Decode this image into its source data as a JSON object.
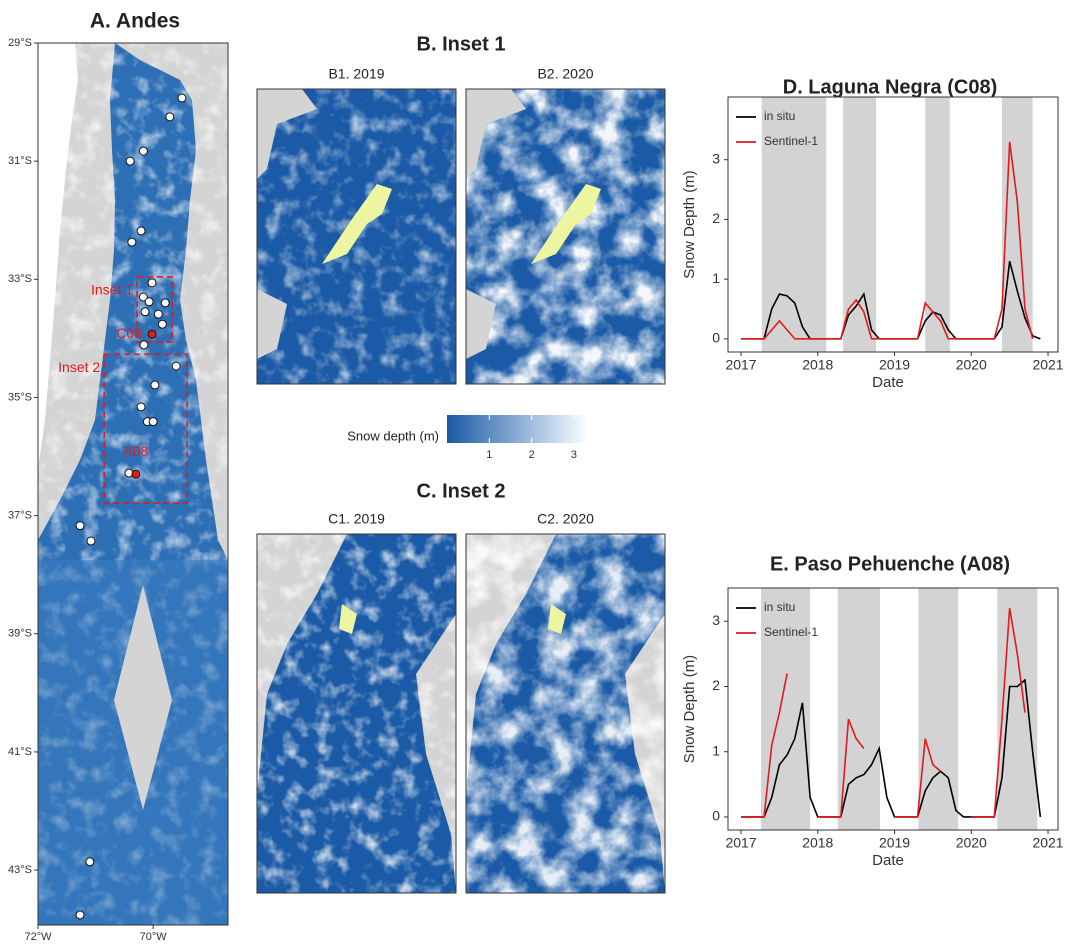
{
  "chart_data": [
    {
      "type": "map",
      "title": "A. Andes",
      "xlim": [
        -72,
        -68.7
      ],
      "ylim": [
        -43.93,
        -29
      ],
      "xticks": [
        {
          "value": -72,
          "label": "72°W"
        },
        {
          "value": -70,
          "label": "70°W"
        }
      ],
      "yticks": [
        {
          "value": -29,
          "label": "29°S"
        },
        {
          "value": -31,
          "label": "31°S"
        },
        {
          "value": -33,
          "label": "33°S"
        },
        {
          "value": -35,
          "label": "35°S"
        },
        {
          "value": -37,
          "label": "37°S"
        },
        {
          "value": -39,
          "label": "39°S"
        },
        {
          "value": -41,
          "label": "41°S"
        },
        {
          "value": -43,
          "label": "43°S"
        }
      ],
      "stations": {
        "color": "#ffffff",
        "lon": [
          -69.5,
          -69.71,
          -70.17,
          -70.4,
          -70.21,
          -70.37,
          -70.02,
          -70.17,
          -70.07,
          -70.14,
          -69.84,
          -69.79,
          -69.91,
          -70.16,
          -69.6,
          -69.97,
          -70.21,
          -70.1,
          -70.0,
          -70.42,
          -71.27,
          -71.08,
          -71.1,
          -71.27
        ],
        "lat": [
          -29.93,
          -30.25,
          -30.83,
          -31.0,
          -32.18,
          -32.37,
          -33.06,
          -33.3,
          -33.38,
          -33.55,
          -33.76,
          -33.4,
          -33.59,
          -34.11,
          -34.47,
          -34.79,
          -35.16,
          -35.41,
          -35.41,
          -36.28,
          -37.17,
          -37.43,
          -42.86,
          -43.76
        ]
      },
      "highlights": [
        {
          "label": "C08",
          "lon": -70.02,
          "lat": -33.93,
          "color": "#e31a1c"
        },
        {
          "label": "A08",
          "lon": -70.3,
          "lat": -36.3,
          "color": "#e31a1c"
        }
      ],
      "insets": [
        {
          "label": "Inset 1",
          "lon": [
            -70.28,
            -69.67
          ],
          "lat": [
            -32.96,
            -34.06
          ],
          "color": "#e31a1c"
        },
        {
          "label": "Inset 2",
          "lon": [
            -70.85,
            -69.41
          ],
          "lat": [
            -34.27,
            -36.79
          ],
          "color": "#e31a1c"
        }
      ]
    },
    {
      "type": "raster",
      "panels": [
        {
          "title": "B. Inset 1",
          "labels": [
            "B1. 2019",
            "B2. 2020"
          ]
        },
        {
          "title": "C. Inset 2",
          "labels": [
            "C1. 2019",
            "C2. 2020"
          ]
        }
      ],
      "colorbar": {
        "label": "Snow depth (m)",
        "lim": [
          0,
          3.26
        ],
        "ticks": [
          1,
          2,
          3
        ],
        "colormap": [
          "#1a5aa6",
          "#f7fbff"
        ]
      }
    },
    {
      "type": "line",
      "title": "D. Laguna Negra (C08)",
      "x_label": "Date",
      "y_label": "Snow Depth (m)",
      "xlim": [
        2016.83,
        2021.13
      ],
      "ylim": [
        -0.22,
        4.05
      ],
      "xticks": [
        2017,
        2018,
        2019,
        2020,
        2021
      ],
      "yticks": [
        0,
        1,
        2,
        3
      ],
      "shading": {
        "color": "#d3d3d3",
        "spans": [
          [
            2017.27,
            2018.11
          ],
          [
            2018.33,
            2018.76
          ],
          [
            2019.4,
            2019.72
          ],
          [
            2020.4,
            2020.8
          ]
        ]
      },
      "legend": "top-left",
      "x": [
        2017.0,
        2017.1,
        2017.2,
        2017.3,
        2017.4,
        2017.5,
        2017.6,
        2017.7,
        2017.8,
        2017.9,
        2018.0,
        2018.1,
        2018.2,
        2018.3,
        2018.4,
        2018.5,
        2018.6,
        2018.7,
        2018.8,
        2018.9,
        2019.0,
        2019.1,
        2019.2,
        2019.3,
        2019.4,
        2019.5,
        2019.6,
        2019.7,
        2019.8,
        2019.9,
        2020.0,
        2020.1,
        2020.2,
        2020.3,
        2020.4,
        2020.5,
        2020.6,
        2020.7,
        2020.8,
        2020.9
      ],
      "series": [
        {
          "name": "in situ",
          "color": "#000000",
          "values": [
            0,
            0,
            0,
            0,
            0.5,
            0.75,
            0.72,
            0.6,
            0.2,
            0,
            0,
            0,
            0,
            0,
            0.4,
            0.55,
            0.75,
            0.15,
            0,
            0,
            0,
            0,
            0,
            0,
            0.3,
            0.45,
            0.4,
            0.15,
            0,
            0,
            0,
            0,
            0,
            0,
            0.2,
            1.3,
            0.8,
            0.35,
            0.05,
            0
          ]
        },
        {
          "name": "Sentinel-1",
          "color": "#e31a1c",
          "values": [
            0,
            0,
            0,
            0,
            0.15,
            0.3,
            0.15,
            0,
            0,
            0,
            0,
            0,
            0,
            0,
            0.5,
            0.65,
            0.45,
            0,
            0,
            0,
            0,
            0,
            0,
            0,
            0.6,
            0.45,
            0.3,
            0,
            0,
            0,
            0,
            0,
            0,
            0,
            0.5,
            3.3,
            2.3,
            0.5,
            0,
            null
          ]
        }
      ]
    },
    {
      "type": "line",
      "title": "E. Paso Pehuenche (A08)",
      "x_label": "Date",
      "y_label": "Snow Depth (m)",
      "xlim": [
        2016.83,
        2021.13
      ],
      "ylim": [
        -0.2,
        3.51
      ],
      "xticks": [
        2017,
        2018,
        2019,
        2020,
        2021
      ],
      "yticks": [
        0,
        1,
        2,
        3
      ],
      "shading": {
        "color": "#d3d3d3",
        "spans": [
          [
            2017.26,
            2017.9
          ],
          [
            2018.26,
            2018.81
          ],
          [
            2019.31,
            2019.83
          ],
          [
            2020.34,
            2020.86
          ]
        ]
      },
      "legend": "top-left",
      "x": [
        2017.0,
        2017.1,
        2017.2,
        2017.3,
        2017.4,
        2017.5,
        2017.6,
        2017.7,
        2017.8,
        2017.9,
        2018.0,
        2018.1,
        2018.2,
        2018.3,
        2018.4,
        2018.5,
        2018.6,
        2018.7,
        2018.8,
        2018.9,
        2019.0,
        2019.1,
        2019.2,
        2019.3,
        2019.4,
        2019.5,
        2019.6,
        2019.7,
        2019.8,
        2019.9,
        2020.0,
        2020.1,
        2020.2,
        2020.3,
        2020.4,
        2020.5,
        2020.6,
        2020.7,
        2020.8,
        2020.9
      ],
      "series": [
        {
          "name": "in situ",
          "color": "#000000",
          "values": [
            0,
            0,
            0,
            0,
            0.3,
            0.8,
            0.95,
            1.2,
            1.75,
            0.3,
            0,
            0,
            0,
            0,
            0.5,
            0.6,
            0.65,
            0.8,
            1.05,
            0.3,
            0,
            0,
            0,
            0,
            0.4,
            0.6,
            0.7,
            0.6,
            0.1,
            0,
            0,
            0,
            0,
            0,
            0.6,
            2.0,
            2.0,
            2.1,
            1.0,
            0
          ]
        },
        {
          "name": "Sentinel-1",
          "color": "#e31a1c",
          "values": [
            0,
            0,
            0,
            0,
            1.1,
            1.6,
            2.2,
            null,
            null,
            null,
            0,
            0,
            0,
            0,
            1.5,
            1.2,
            1.05,
            null,
            null,
            null,
            0,
            0,
            0,
            0,
            1.2,
            0.8,
            0.7,
            null,
            null,
            null,
            0,
            0,
            0,
            0,
            1.5,
            3.2,
            2.5,
            1.6,
            null,
            null
          ]
        }
      ]
    }
  ]
}
